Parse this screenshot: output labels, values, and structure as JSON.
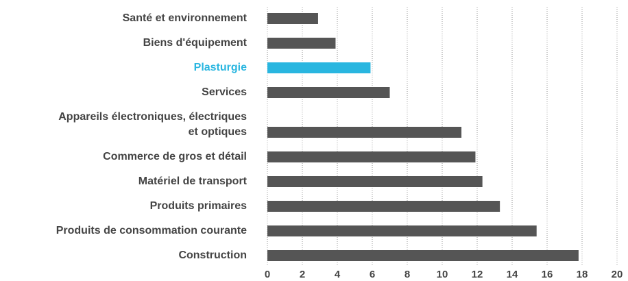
{
  "chart_data": {
    "type": "barh",
    "categories": [
      "Santé et environnement",
      "Biens d'équipement",
      "Plasturgie",
      "Services",
      "Appareils électroniques, électriques\net optiques",
      "Commerce de gros et détail",
      "Matériel de transport",
      "Produits primaires",
      "Produits de consommation courante",
      "Construction"
    ],
    "values": [
      2.9,
      3.9,
      5.9,
      7.0,
      11.1,
      11.9,
      12.3,
      13.3,
      15.4,
      17.8
    ],
    "colors": [
      "#555555",
      "#555555",
      "#29b6e0",
      "#555555",
      "#555555",
      "#555555",
      "#555555",
      "#555555",
      "#555555",
      "#555555"
    ],
    "xlim": [
      0,
      20
    ],
    "xticks": [
      0,
      2,
      4,
      6,
      8,
      10,
      12,
      14,
      16,
      18,
      20
    ],
    "grid": true
  }
}
